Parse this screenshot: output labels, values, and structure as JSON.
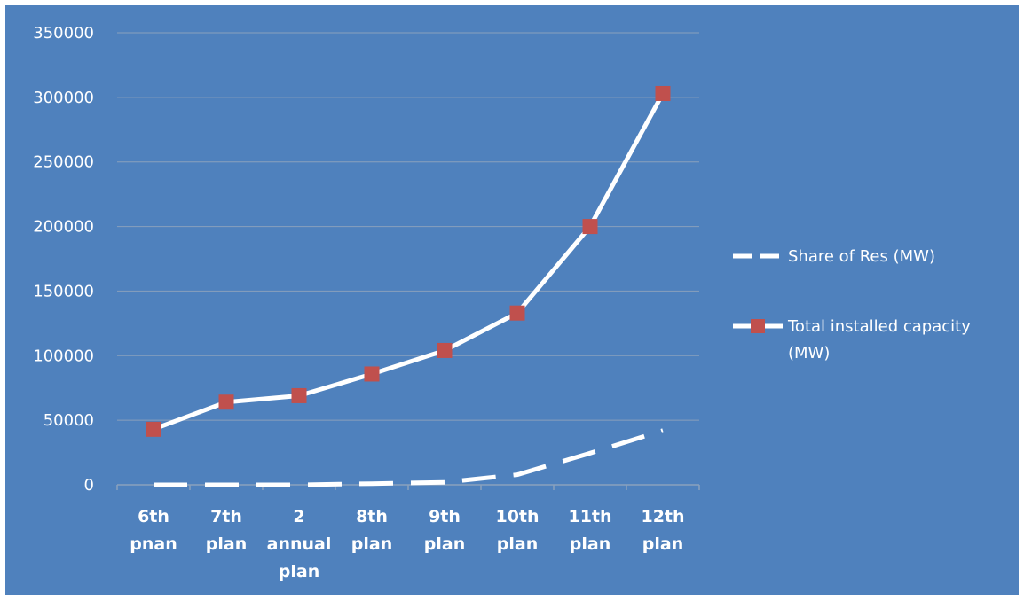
{
  "colors": {
    "background": "#4f81bd",
    "line": "#ffffff",
    "marker": "#c0504d",
    "grid": "#8aa1bd",
    "text": "#ffffff"
  },
  "chart_data": {
    "type": "line",
    "title": "",
    "xlabel": "",
    "ylabel": "",
    "categories": [
      [
        "6th",
        "pnan"
      ],
      [
        "7th",
        "plan"
      ],
      [
        "2",
        "annual",
        "plan"
      ],
      [
        "8th",
        "plan"
      ],
      [
        "9th",
        "plan"
      ],
      [
        "10th",
        "plan"
      ],
      [
        "11th",
        "plan"
      ],
      [
        "12th",
        "plan"
      ]
    ],
    "ylim": [
      0,
      350000
    ],
    "yticks": [
      0,
      50000,
      100000,
      150000,
      200000,
      250000,
      300000,
      350000
    ],
    "grid": true,
    "legend_position": "right",
    "series": [
      {
        "name": "Share of Res (MW)",
        "style": "dashed",
        "marker": "none",
        "values": [
          0,
          0,
          0,
          900,
          1900,
          7800,
          24500,
          42000
        ]
      },
      {
        "name": "Total installed capacity (MW)",
        "style": "solid",
        "marker": "square",
        "values": [
          43000,
          64000,
          69000,
          85800,
          104000,
          133000,
          200000,
          303000
        ]
      }
    ]
  }
}
